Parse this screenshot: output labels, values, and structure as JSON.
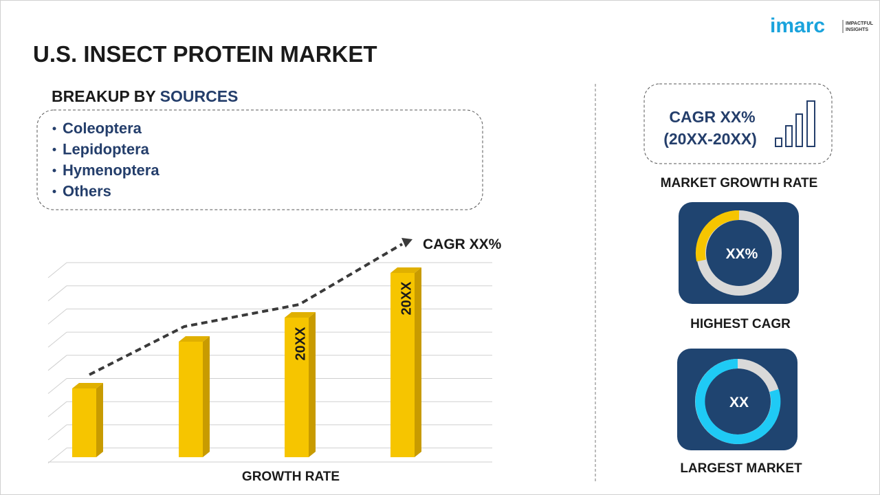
{
  "logo": {
    "brand": "imarc",
    "tagline_1": "IMPACTFUL",
    "tagline_2": "INSIGHTS"
  },
  "title": "U.S. INSECT PROTEIN MARKET",
  "breakup": {
    "heading_prefix": "BREAKUP BY",
    "heading_highlight": "SOURCES",
    "items": [
      "Coleoptera",
      "Lepidoptera",
      "Hymenoptera",
      "Others"
    ]
  },
  "growth_chart": {
    "trend_label": "CAGR XX%",
    "bar_labels": [
      "20XX",
      "20XX"
    ],
    "caption": "GROWTH RATE"
  },
  "cards": {
    "growth": {
      "line_1": "CAGR XX%",
      "line_2": "(20XX-20XX)",
      "caption": "MARKET GROWTH RATE"
    },
    "highest": {
      "value": "XX%",
      "caption": "HIGHEST CAGR"
    },
    "largest": {
      "value": "XX",
      "caption": "LARGEST MARKET"
    }
  }
}
